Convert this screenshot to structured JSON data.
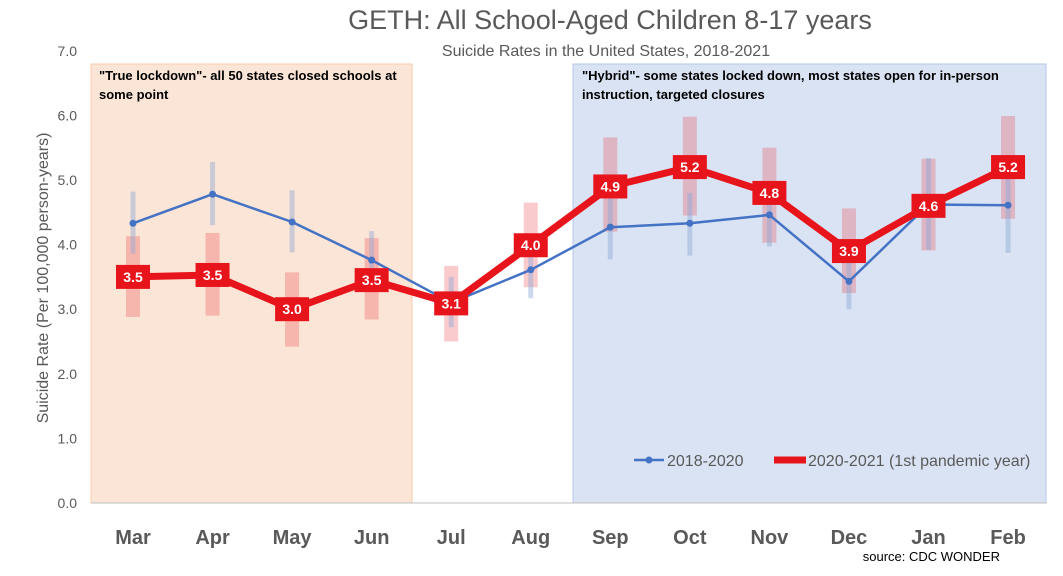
{
  "chart_data": {
    "type": "line",
    "title": "GETH: All School-Aged Children 8-17 years",
    "subtitle": "Suicide Rates in the United States, 2018-2021",
    "xlabel": "",
    "ylabel": "Suicide Rate (Per 100,000 person-years)",
    "ylim": [
      0,
      7
    ],
    "yticks": [
      "0.0",
      "1.0",
      "2.0",
      "3.0",
      "4.0",
      "5.0",
      "6.0",
      "7.0"
    ],
    "categories": [
      "Mar",
      "Apr",
      "May",
      "Jun",
      "Jul",
      "Aug",
      "Sep",
      "Oct",
      "Nov",
      "Dec",
      "Jan",
      "Feb"
    ],
    "series": [
      {
        "name": "2018-2020",
        "color": "#4472c4",
        "values": [
          4.33,
          4.78,
          4.35,
          3.76,
          3.1,
          3.61,
          4.27,
          4.33,
          4.46,
          3.43,
          4.62,
          4.61
        ],
        "ci_low": [
          3.86,
          4.3,
          3.88,
          3.32,
          2.72,
          3.17,
          3.77,
          3.83,
          3.97,
          3.0,
          3.92,
          3.87
        ],
        "ci_high": [
          4.82,
          5.28,
          4.84,
          4.21,
          3.5,
          4.08,
          4.79,
          4.8,
          4.97,
          3.88,
          5.34,
          5.35
        ]
      },
      {
        "name": "2020-2021 (1st pandemic year)",
        "color": "#e8141b",
        "values": [
          3.5,
          3.53,
          3.0,
          3.45,
          3.09,
          3.99,
          4.9,
          5.2,
          4.8,
          3.9,
          4.6,
          5.2
        ],
        "labels": [
          "3.5",
          "3.5",
          "3.0",
          "3.5",
          "3.1",
          "4.0",
          "4.9",
          "5.2",
          "4.8",
          "3.9",
          "4.6",
          "5.2"
        ],
        "ci_low": [
          2.88,
          2.9,
          2.42,
          2.84,
          2.5,
          3.34,
          4.2,
          4.45,
          4.03,
          3.25,
          3.91,
          4.4
        ],
        "ci_high": [
          4.13,
          4.18,
          3.57,
          4.1,
          3.67,
          4.65,
          5.66,
          5.98,
          5.5,
          4.56,
          5.33,
          5.99
        ]
      }
    ],
    "shaded_regions": [
      {
        "name": "true-lockdown",
        "from": "Mar",
        "to": "Jun",
        "color": "#fbe5d6",
        "label_line1": "\"True lockdown\"- all 50 states closed schools at",
        "label_line2": "some point"
      },
      {
        "name": "hybrid",
        "from": "Sep",
        "to": "Feb",
        "color": "#dae3f3",
        "label_line1": "\"Hybrid\"- some states locked down, most states open for in-person",
        "label_line2": "instruction, targeted closures"
      }
    ],
    "legend_position": "bottom-right",
    "grid": false,
    "source": "source: CDC WONDER"
  }
}
